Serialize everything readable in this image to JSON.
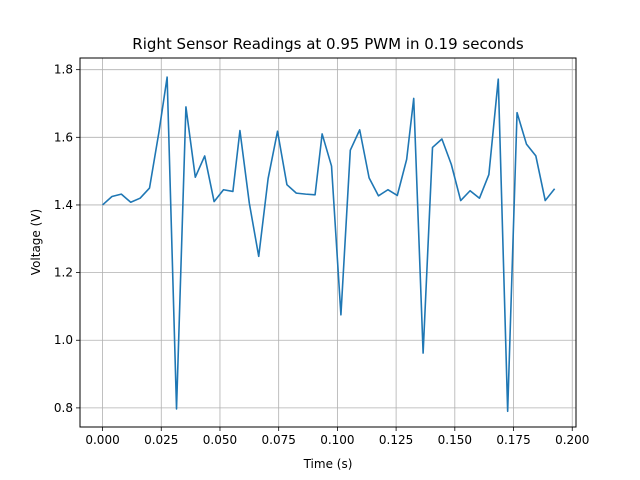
{
  "chart_data": {
    "type": "line",
    "title": "Right Sensor Readings at 0.95 PWM in 0.19 seconds",
    "xlabel": "Time (s)",
    "ylabel": "Voltage (V)",
    "xlim": [
      -0.0096,
      0.2016
    ],
    "ylim": [
      0.7435,
      1.8345
    ],
    "xticks": [
      0.0,
      0.025,
      0.05,
      0.075,
      0.1,
      0.125,
      0.15,
      0.175,
      0.2
    ],
    "xtick_labels": [
      "0.000",
      "0.025",
      "0.050",
      "0.075",
      "0.100",
      "0.125",
      "0.150",
      "0.175",
      "0.200"
    ],
    "yticks": [
      0.8,
      1.0,
      1.2,
      1.4,
      1.6,
      1.8
    ],
    "ytick_labels": [
      "0.8",
      "1.0",
      "1.2",
      "1.4",
      "1.6",
      "1.8"
    ],
    "grid": true,
    "line_color": "#1f77b4",
    "series": [
      {
        "x": [
          0.0,
          0.004,
          0.008,
          0.012,
          0.016,
          0.02,
          0.024,
          0.0275,
          0.0315,
          0.0355,
          0.0395,
          0.0435,
          0.0475,
          0.0515,
          0.0555,
          0.0585,
          0.0625,
          0.0665,
          0.0705,
          0.0745,
          0.0785,
          0.0825,
          0.0865,
          0.0905,
          0.0935,
          0.0975,
          0.1015,
          0.1055,
          0.1095,
          0.1135,
          0.1175,
          0.1215,
          0.1255,
          0.1295,
          0.1325,
          0.1365,
          0.1405,
          0.1445,
          0.1485,
          0.1525,
          0.1565,
          0.1605,
          0.1645,
          0.1685,
          0.1725,
          0.1765,
          0.1805,
          0.1845,
          0.1885,
          0.1925
        ],
        "y": [
          1.4,
          1.425,
          1.432,
          1.408,
          1.42,
          1.45,
          1.615,
          1.778,
          0.797,
          1.69,
          1.482,
          1.545,
          1.41,
          1.445,
          1.44,
          1.62,
          1.405,
          1.248,
          1.478,
          1.618,
          1.46,
          1.435,
          1.432,
          1.43,
          1.61,
          1.515,
          1.075,
          1.562,
          1.622,
          1.48,
          1.427,
          1.445,
          1.428,
          1.535,
          1.715,
          0.962,
          1.57,
          1.595,
          1.52,
          1.413,
          1.442,
          1.42,
          1.49,
          1.772,
          0.79,
          1.673,
          1.58,
          1.545,
          1.413,
          1.448
        ]
      }
    ]
  }
}
